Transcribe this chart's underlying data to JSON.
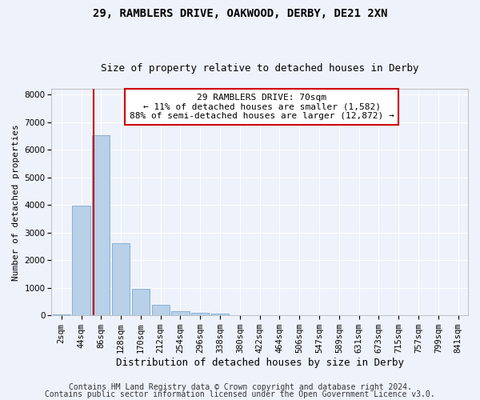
{
  "title1": "29, RAMBLERS DRIVE, OAKWOOD, DERBY, DE21 2XN",
  "title2": "Size of property relative to detached houses in Derby",
  "xlabel": "Distribution of detached houses by size in Derby",
  "ylabel": "Number of detached properties",
  "categories": [
    "2sqm",
    "44sqm",
    "86sqm",
    "128sqm",
    "170sqm",
    "212sqm",
    "254sqm",
    "296sqm",
    "338sqm",
    "380sqm",
    "422sqm",
    "464sqm",
    "506sqm",
    "547sqm",
    "589sqm",
    "631sqm",
    "673sqm",
    "715sqm",
    "757sqm",
    "799sqm",
    "841sqm"
  ],
  "values": [
    30,
    3980,
    6530,
    2600,
    950,
    390,
    150,
    100,
    50,
    10,
    0,
    0,
    0,
    0,
    0,
    0,
    0,
    0,
    0,
    0,
    0
  ],
  "bar_color": "#b8d0e8",
  "bar_edge_color": "#7aaad0",
  "vline_color": "#cc0000",
  "annotation_line1": "29 RAMBLERS DRIVE: 70sqm",
  "annotation_line2": "← 11% of detached houses are smaller (1,582)",
  "annotation_line3": "88% of semi-detached houses are larger (12,872) →",
  "annotation_box_color": "#ffffff",
  "annotation_box_edge_color": "#cc0000",
  "ylim": [
    0,
    8200
  ],
  "yticks": [
    0,
    1000,
    2000,
    3000,
    4000,
    5000,
    6000,
    7000,
    8000
  ],
  "footer1": "Contains HM Land Registry data © Crown copyright and database right 2024.",
  "footer2": "Contains public sector information licensed under the Open Government Licence v3.0.",
  "bg_color": "#eef2fa",
  "grid_color": "#ffffff",
  "title1_fontsize": 10,
  "title2_fontsize": 9,
  "xlabel_fontsize": 9,
  "ylabel_fontsize": 8,
  "tick_fontsize": 7.5,
  "annotation_fontsize": 8,
  "footer_fontsize": 7
}
